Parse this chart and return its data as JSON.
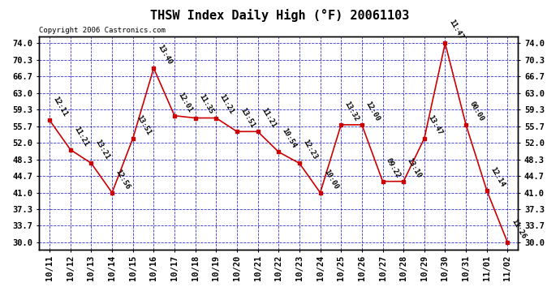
{
  "title": "THSW Index Daily High (°F) 20061103",
  "copyright": "Copyright 2006 Castronics.com",
  "dates": [
    "10/11",
    "10/12",
    "10/13",
    "10/14",
    "10/15",
    "10/16",
    "10/17",
    "10/18",
    "10/19",
    "10/20",
    "10/21",
    "10/22",
    "10/23",
    "10/24",
    "10/25",
    "10/26",
    "10/27",
    "10/28",
    "10/29",
    "10/30",
    "10/31",
    "11/01",
    "11/02"
  ],
  "values": [
    57.0,
    50.5,
    47.5,
    41.0,
    53.0,
    68.5,
    58.0,
    57.5,
    57.5,
    54.5,
    54.5,
    50.0,
    47.5,
    41.0,
    56.0,
    56.0,
    43.5,
    43.5,
    53.0,
    74.0,
    56.0,
    41.5,
    30.0
  ],
  "times": [
    "12:11",
    "11:21",
    "13:21",
    "12:56",
    "13:51",
    "13:40",
    "12:01",
    "11:35",
    "11:21",
    "13:51",
    "11:21",
    "10:54",
    "12:23",
    "10:00",
    "13:32",
    "12:00",
    "09:22",
    "13:10",
    "13:47",
    "11:47",
    "00:00",
    "12:14",
    "11:26"
  ],
  "yticks": [
    30.0,
    33.7,
    37.3,
    41.0,
    44.7,
    48.3,
    52.0,
    55.7,
    59.3,
    63.0,
    66.7,
    70.3,
    74.0
  ],
  "ymin": 28.5,
  "ymax": 75.5,
  "line_color": "#cc0000",
  "marker_color": "#cc0000",
  "bg_color": "#ffffff",
  "plot_bg_color": "#ffffff",
  "grid_color": "#0000cc",
  "title_fontsize": 11,
  "copyright_fontsize": 6.5,
  "label_fontsize": 6.5,
  "tick_fontsize": 7.5
}
